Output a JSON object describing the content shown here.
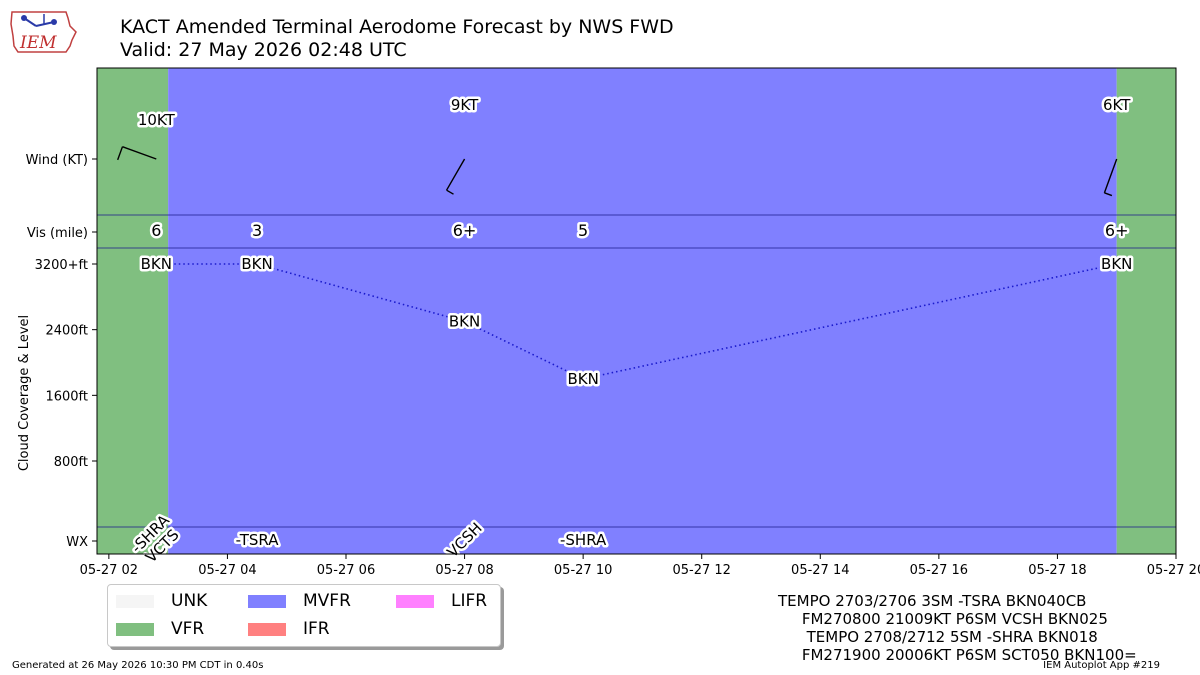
{
  "header": {
    "title_line1": "KACT Amended Terminal Aerodome Forecast by NWS FWD",
    "title_line2": "Valid: 27 May 2026 02:48 UTC",
    "logo_text": "IEM"
  },
  "chart_data": {
    "type": "area",
    "x_axis": {
      "type": "time",
      "range": [
        "2026-05-27 01:48",
        "2026-05-27 20:00"
      ],
      "ticks": [
        {
          "t": "2026-05-27 02:00",
          "label": "05-27 02"
        },
        {
          "t": "2026-05-27 04:00",
          "label": "05-27 04"
        },
        {
          "t": "2026-05-27 06:00",
          "label": "05-27 06"
        },
        {
          "t": "2026-05-27 08:00",
          "label": "05-27 08"
        },
        {
          "t": "2026-05-27 10:00",
          "label": "05-27 10"
        },
        {
          "t": "2026-05-27 12:00",
          "label": "05-27 12"
        },
        {
          "t": "2026-05-27 14:00",
          "label": "05-27 14"
        },
        {
          "t": "2026-05-27 16:00",
          "label": "05-27 16"
        },
        {
          "t": "2026-05-27 18:00",
          "label": "05-27 18"
        },
        {
          "t": "2026-05-27 20:00",
          "label": "05-27 20"
        }
      ]
    },
    "y_axis": {
      "label": "Cloud Coverage & Level",
      "row_labels": [
        "Wind (KT)",
        "Vis (mile)"
      ],
      "level_ticks": [
        {
          "value": 3200,
          "label": "3200+ft"
        },
        {
          "value": 2400,
          "label": "2400ft"
        },
        {
          "value": 1600,
          "label": "1600ft"
        },
        {
          "value": 800,
          "label": "800ft"
        }
      ],
      "wx_label": "WX",
      "level_range": [
        0,
        3300
      ]
    },
    "flight_categories": [
      {
        "start": "2026-05-27 01:48",
        "end": "2026-05-27 03:00",
        "category": "VFR"
      },
      {
        "start": "2026-05-27 03:00",
        "end": "2026-05-27 19:00",
        "category": "MVFR"
      },
      {
        "start": "2026-05-27 19:00",
        "end": "2026-05-27 20:00",
        "category": "VFR"
      }
    ],
    "wind": [
      {
        "t": "2026-05-27 02:48",
        "label": "10KT",
        "direction_deg": 290,
        "speed_kt": 10
      },
      {
        "t": "2026-05-27 08:00",
        "label": "9KT",
        "direction_deg": 210,
        "speed_kt": 9
      },
      {
        "t": "2026-05-27 19:00",
        "label": "6KT",
        "direction_deg": 200,
        "speed_kt": 6
      }
    ],
    "visibility": [
      {
        "t": "2026-05-27 02:48",
        "label": "6"
      },
      {
        "t": "2026-05-27 04:30",
        "label": "3"
      },
      {
        "t": "2026-05-27 08:00",
        "label": "6+"
      },
      {
        "t": "2026-05-27 10:00",
        "label": "5"
      },
      {
        "t": "2026-05-27 19:00",
        "label": "6+"
      }
    ],
    "clouds": [
      {
        "t": "2026-05-27 02:48",
        "level_ft": 3200,
        "label": "BKN"
      },
      {
        "t": "2026-05-27 04:30",
        "level_ft": 3200,
        "label": "BKN"
      },
      {
        "t": "2026-05-27 08:00",
        "level_ft": 2500,
        "label": "BKN"
      },
      {
        "t": "2026-05-27 10:00",
        "level_ft": 1800,
        "label": "BKN"
      },
      {
        "t": "2026-05-27 19:00",
        "level_ft": 3200,
        "label": "BKN"
      }
    ],
    "weather": [
      {
        "t": "2026-05-27 02:48",
        "label": "-SHRA\nVCTS",
        "rotated": true
      },
      {
        "t": "2026-05-27 04:30",
        "label": "-TSRA",
        "rotated": false
      },
      {
        "t": "2026-05-27 08:00",
        "label": "VCSH",
        "rotated": true
      },
      {
        "t": "2026-05-27 10:00",
        "label": "-SHRA",
        "rotated": false
      }
    ],
    "colors": {
      "UNK": "#f5f5f5",
      "VFR": "#80bf80",
      "MVFR": "#8080ff",
      "IFR": "#ff8080",
      "LIFR": "#ff80ff",
      "cloud_line": "#1a1acc",
      "separator": "#1a1a8c"
    },
    "legend": [
      "UNK",
      "VFR",
      "MVFR",
      "IFR",
      "LIFR"
    ]
  },
  "legend": {
    "items": [
      {
        "label": "UNK",
        "color": "#f5f5f5"
      },
      {
        "label": "MVFR",
        "color": "#8080ff"
      },
      {
        "label": "LIFR",
        "color": "#ff80ff"
      },
      {
        "label": "VFR",
        "color": "#80bf80"
      },
      {
        "label": "IFR",
        "color": "#ff8080"
      }
    ]
  },
  "taf_text": [
    "TEMPO 2703/2706 3SM -TSRA BKN040CB",
    "     FM270800 21009KT P6SM VCSH BKN025",
    "      TEMPO 2708/2712 5SM -SHRA BKN018",
    "     FM271900 20006KT P6SM SCT050 BKN100="
  ],
  "footer": {
    "generated": "Generated at 26 May 2026 10:30 PM CDT in 0.40s",
    "app": "IEM Autoplot App #219"
  }
}
